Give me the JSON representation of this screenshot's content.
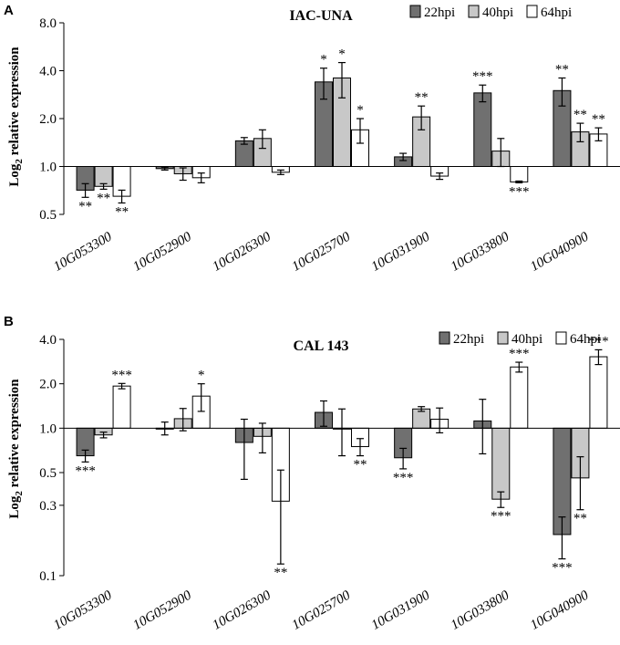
{
  "chart_data": [
    {
      "panel": "A",
      "type": "bar",
      "title": "IAC-UNA",
      "ylabel": "Log2 relative expression",
      "ylabel_main": "Log",
      "ylabel_sub": "2",
      "ylabel_rest": " relative expression",
      "yscale": "log2",
      "ylim": [
        0.5,
        8.0
      ],
      "yticks": [
        "0.5",
        "1.0",
        "2.0",
        "4.0",
        "8.0"
      ],
      "baseline": 1.0,
      "categories": [
        "10G053300",
        "10G052900",
        "10G026300",
        "10G025700",
        "10G031900",
        "10G033800",
        "10G040900"
      ],
      "series": [
        {
          "name": "22hpi",
          "color": "#707070",
          "values": [
            0.71,
            0.97,
            1.45,
            3.4,
            1.15,
            2.9,
            3.0
          ],
          "errors": [
            0.07,
            0.02,
            0.07,
            0.75,
            0.06,
            0.35,
            0.6
          ],
          "sig": [
            "**",
            "",
            "",
            "*",
            "",
            "***",
            "**"
          ]
        },
        {
          "name": "40hpi",
          "color": "#c8c8c8",
          "values": [
            0.75,
            0.9,
            1.5,
            3.6,
            2.05,
            1.25,
            1.65
          ],
          "errors": [
            0.03,
            0.08,
            0.2,
            0.9,
            0.35,
            0.25,
            0.22
          ],
          "sig": [
            "**",
            "",
            "",
            "*",
            "**",
            "",
            "**"
          ]
        },
        {
          "name": "64hpi",
          "color": "#ffffff",
          "values": [
            0.65,
            0.85,
            0.92,
            1.7,
            0.87,
            0.8,
            1.6
          ],
          "errors": [
            0.06,
            0.06,
            0.03,
            0.3,
            0.04,
            0.01,
            0.15
          ],
          "sig": [
            "**",
            "",
            "",
            "*",
            "",
            "***",
            "**"
          ]
        }
      ]
    },
    {
      "panel": "B",
      "type": "bar",
      "title": "CAL 143",
      "ylabel": "Log2 relative expression",
      "ylabel_main": "Log",
      "ylabel_sub": "2",
      "ylabel_rest": " relative expression",
      "yscale": "log2",
      "ylim": [
        0.1,
        4.0
      ],
      "yticks": [
        "0.1",
        "0.3",
        "0.5",
        "1.0",
        "2.0",
        "4.0"
      ],
      "baseline": 1.0,
      "categories": [
        "10G053300",
        "10G052900",
        "10G026300",
        "10G025700",
        "10G031900",
        "10G033800",
        "10G040900"
      ],
      "series": [
        {
          "name": "22hpi",
          "color": "#707070",
          "values": [
            0.65,
            1.0,
            0.8,
            1.28,
            0.63,
            1.12,
            0.19
          ],
          "errors": [
            0.06,
            0.1,
            0.35,
            0.25,
            0.1,
            0.45,
            0.06
          ],
          "sig": [
            "***",
            "",
            "",
            "",
            "***",
            "",
            "***"
          ]
        },
        {
          "name": "40hpi",
          "color": "#c8c8c8",
          "values": [
            0.9,
            1.16,
            0.88,
            1.0,
            1.35,
            0.33,
            0.46
          ],
          "errors": [
            0.04,
            0.2,
            0.2,
            0.35,
            0.05,
            0.04,
            0.18
          ],
          "sig": [
            "",
            "",
            "",
            "",
            "",
            "***",
            "**"
          ]
        },
        {
          "name": "64hpi",
          "color": "#ffffff",
          "values": [
            1.93,
            1.65,
            0.32,
            0.75,
            1.15,
            2.6,
            3.05
          ],
          "errors": [
            0.08,
            0.35,
            0.2,
            0.1,
            0.22,
            0.2,
            0.35
          ],
          "sig": [
            "***",
            "*",
            "**",
            "**",
            "",
            "***",
            "***"
          ]
        }
      ]
    }
  ]
}
